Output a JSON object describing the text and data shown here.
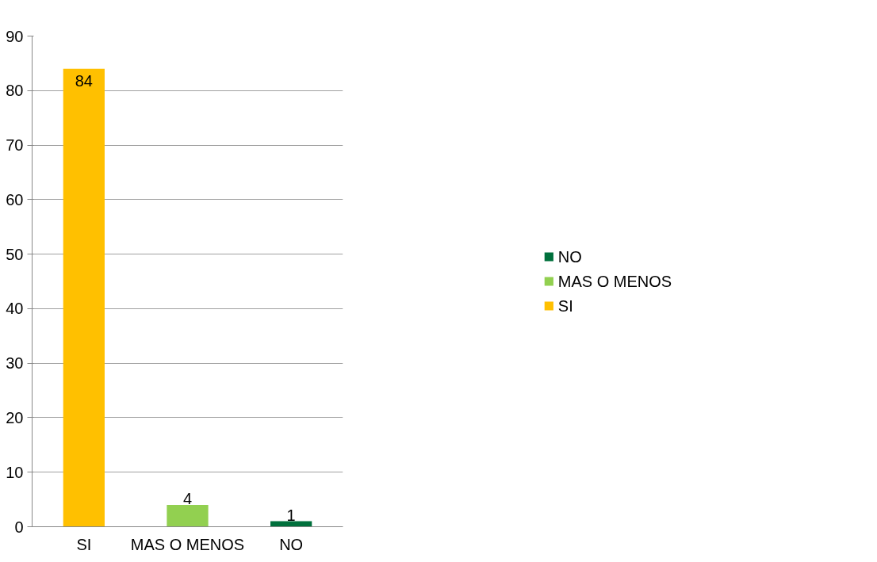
{
  "chart_data": {
    "type": "bar",
    "categories": [
      "SI",
      "MAS O MENOS",
      "NO"
    ],
    "series": [
      {
        "name": "SI",
        "color": "#ffc000",
        "values": [
          84,
          null,
          null
        ]
      },
      {
        "name": "MAS O MENOS",
        "color": "#92d050",
        "values": [
          null,
          4,
          null
        ]
      },
      {
        "name": "NO",
        "color": "#00703c",
        "values": [
          null,
          null,
          1
        ]
      }
    ],
    "ylim": [
      0,
      90
    ],
    "yticks": [
      0,
      10,
      20,
      30,
      40,
      50,
      60,
      70,
      80,
      90
    ],
    "grid": "y",
    "legend": "right",
    "data_labels": true
  }
}
